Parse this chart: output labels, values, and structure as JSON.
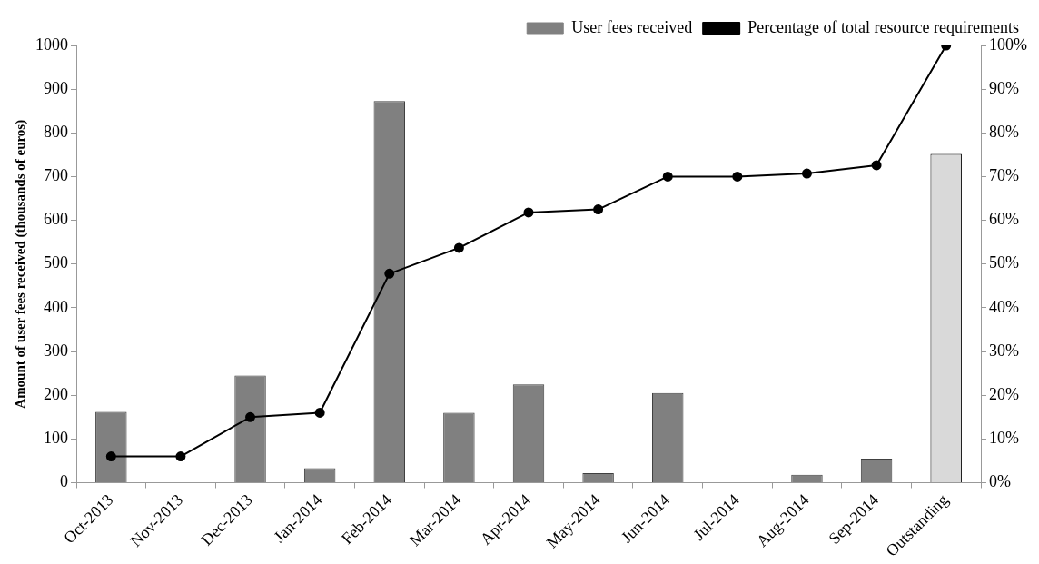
{
  "chart_data": {
    "type": "bar",
    "ylabel": "Amount of user fees received (thousands of euros)",
    "categories": [
      "Oct-2013",
      "Nov-2013",
      "Dec-2013",
      "Jan-2014",
      "Feb-2014",
      "Mar-2014",
      "Apr-2014",
      "May-2014",
      "Jun-2014",
      "Jul-2014",
      "Aug-2014",
      "Sep-2014",
      "Outstanding"
    ],
    "series": [
      {
        "name": "User fees received",
        "color": "#808080",
        "colors": [
          "#808080",
          "#808080",
          "#808080",
          "#808080",
          "#808080",
          "#808080",
          "#808080",
          "#808080",
          "#808080",
          "#808080",
          "#808080",
          "#808080",
          "#d9d9d9"
        ],
        "values": [
          162,
          0,
          245,
          33,
          873,
          160,
          225,
          22,
          205,
          0,
          18,
          55,
          752
        ]
      },
      {
        "name": "Percentage of total resource requirements",
        "type": "line",
        "axis": "y2",
        "color": "#000000",
        "marker": "circle",
        "line_style": "solid",
        "values": [
          6,
          6,
          15,
          16,
          47.8,
          53.7,
          61.8,
          62.5,
          70,
          70,
          70.7,
          72.6,
          100
        ]
      }
    ],
    "ylim": [
      0,
      1000
    ],
    "yticks": [
      0,
      100,
      200,
      300,
      400,
      500,
      600,
      700,
      800,
      900,
      1000
    ],
    "y2lim": [
      0,
      100
    ],
    "y2ticks": [
      {
        "value": 0,
        "label": "0%"
      },
      {
        "value": 10,
        "label": "10%"
      },
      {
        "value": 20,
        "label": "20%"
      },
      {
        "value": 30,
        "label": "30%"
      },
      {
        "value": 40,
        "label": "40%"
      },
      {
        "value": 50,
        "label": "50%"
      },
      {
        "value": 60,
        "label": "60%"
      },
      {
        "value": 70,
        "label": "70%"
      },
      {
        "value": 80,
        "label": "80%"
      },
      {
        "value": 90,
        "label": "90%"
      },
      {
        "value": 100,
        "label": "100%"
      }
    ],
    "grid": false,
    "legend": "top right"
  }
}
